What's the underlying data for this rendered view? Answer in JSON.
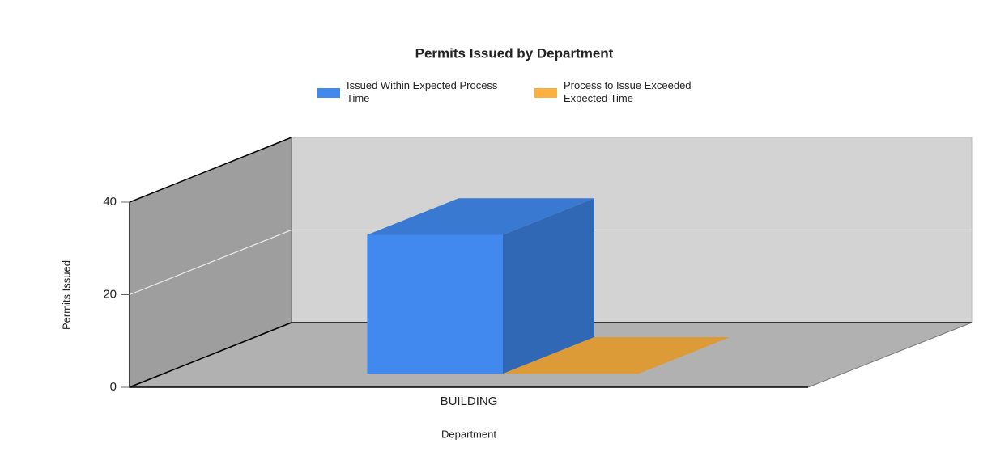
{
  "chart_data": {
    "type": "bar",
    "title": "Permits Issued by Department",
    "x_label": "Department",
    "y_label": "Permits Issued",
    "categories": [
      "BUILDING"
    ],
    "series": [
      {
        "name": "Issued Within Expected Process Time",
        "color": "#4189ee",
        "values": [
          30
        ]
      },
      {
        "name": "Process to Issue Exceeded Expected Time",
        "color": "#fbb040",
        "values": [
          0
        ]
      }
    ],
    "ylim": [
      0,
      40
    ],
    "yticks": [
      0,
      20,
      40
    ],
    "grid": true,
    "legend": "top"
  }
}
